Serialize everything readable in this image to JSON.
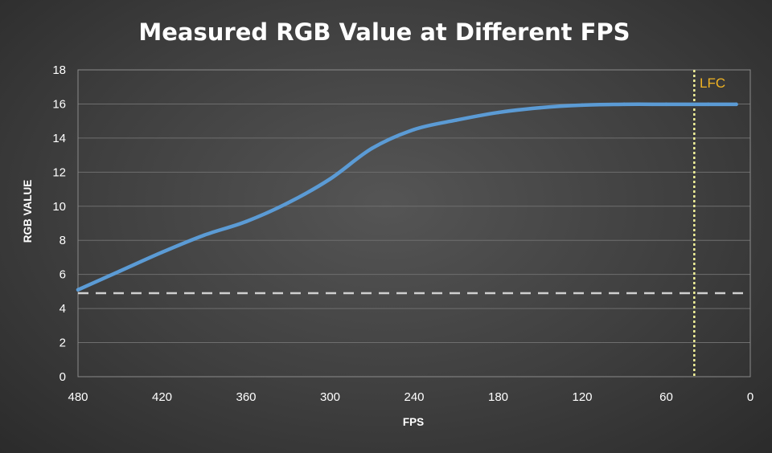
{
  "chart_data": {
    "type": "line",
    "title": "Measured RGB Value at Different FPS",
    "xlabel": "FPS",
    "ylabel": "RGB VALUE",
    "xlim": [
      480,
      0
    ],
    "ylim": [
      0,
      18
    ],
    "x_reversed": true,
    "x_ticks": [
      "480",
      "420",
      "360",
      "300",
      "240",
      "180",
      "120",
      "60",
      "0"
    ],
    "x_tick_values": [
      480,
      420,
      360,
      300,
      240,
      180,
      120,
      60,
      0
    ],
    "y_ticks": [
      "0",
      "2",
      "4",
      "6",
      "8",
      "10",
      "12",
      "14",
      "16",
      "18"
    ],
    "y_tick_values": [
      0,
      2,
      4,
      6,
      8,
      10,
      12,
      14,
      16,
      18
    ],
    "grid": "horizontal",
    "series": [
      {
        "x": [
          480,
          450,
          420,
          390,
          360,
          330,
          300,
          270,
          240,
          210,
          180,
          150,
          120,
          90,
          60,
          30,
          10
        ],
        "values": [
          5.1,
          6.2,
          7.3,
          8.3,
          9.1,
          10.2,
          11.6,
          13.4,
          14.5,
          15.05,
          15.5,
          15.78,
          15.93,
          15.98,
          15.98,
          15.98,
          15.98
        ],
        "color": "#5b9bd5"
      }
    ],
    "reference_lines": [
      {
        "orientation": "horizontal",
        "value": 4.9,
        "style": "dashed",
        "color": "#cfcfcf"
      },
      {
        "orientation": "vertical",
        "value": 40,
        "style": "dotted",
        "color": "#f3f39a",
        "label": "LFC",
        "label_color": "#f0b323"
      }
    ]
  }
}
